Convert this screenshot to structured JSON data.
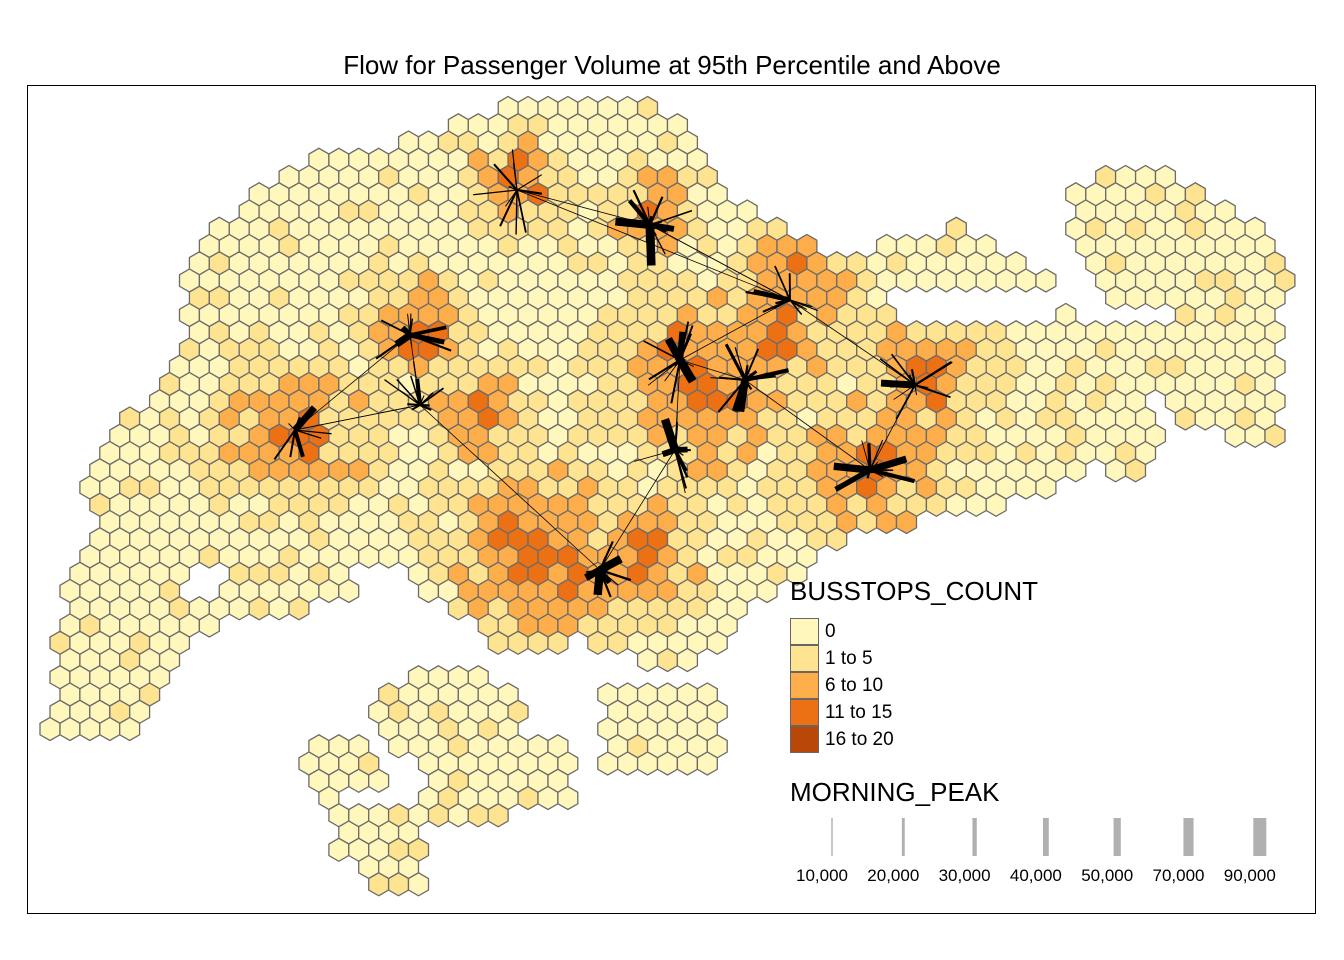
{
  "title": "Flow for Passenger Volume at 95th Percentile and Above",
  "legend_busstops": {
    "title": "BUSSTOPS_COUNT",
    "items": [
      {
        "label": "0",
        "color": "#fff7bc"
      },
      {
        "label": "1 to 5",
        "color": "#fee391"
      },
      {
        "label": "6 to 10",
        "color": "#fdae4b"
      },
      {
        "label": "11 to 15",
        "color": "#ec7014"
      },
      {
        "label": "16 to 20",
        "color": "#b94808"
      }
    ]
  },
  "legend_peak": {
    "title": "MORNING_PEAK",
    "items": [
      {
        "label": "10,000",
        "value": 10000
      },
      {
        "label": "20,000",
        "value": 20000
      },
      {
        "label": "30,000",
        "value": 30000
      },
      {
        "label": "40,000",
        "value": 40000
      },
      {
        "label": "50,000",
        "value": 50000
      },
      {
        "label": "70,000",
        "value": 70000
      },
      {
        "label": "90,000",
        "value": 90000
      }
    ]
  },
  "colors": {
    "hex_border": "#6b6b6b",
    "flow_line": "#000000",
    "legend_line": "#b0b0b0",
    "frame": "#000000"
  }
}
